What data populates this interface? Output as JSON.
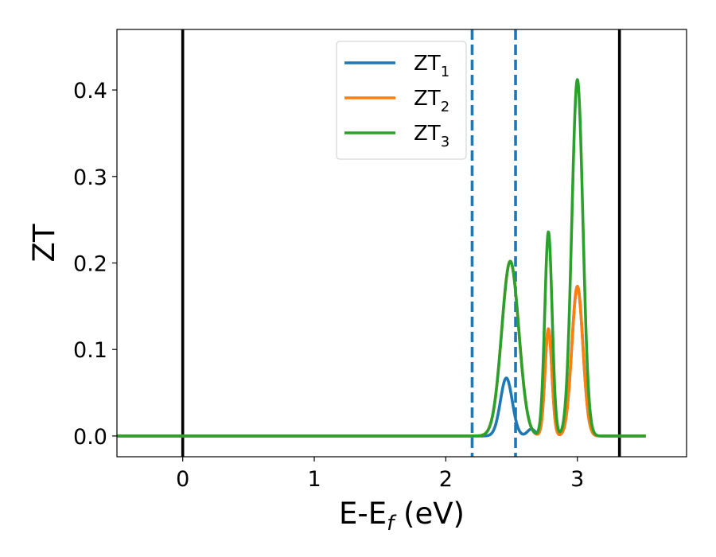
{
  "chart_data": {
    "type": "line",
    "xlabel": {
      "main": "E-E",
      "sub": "f",
      "suffix": " (eV)"
    },
    "ylabel": "ZT",
    "xlim": [
      -0.5,
      3.83
    ],
    "ylim": [
      -0.024,
      0.47
    ],
    "xticks": [
      0,
      1,
      2,
      3
    ],
    "xtick_labels": [
      "0",
      "1",
      "2",
      "3"
    ],
    "yticks": [
      0.0,
      0.1,
      0.2,
      0.3,
      0.4
    ],
    "ytick_labels": [
      "0.0",
      "0.1",
      "0.2",
      "0.3",
      "0.4"
    ],
    "grid": false,
    "legend_position": "upper-center",
    "vlines_solid": [
      0.0,
      3.32
    ],
    "vlines_dashed": [
      2.2,
      2.53
    ],
    "x_range": [
      -0.5,
      3.52
    ],
    "series": [
      {
        "name": "ZT",
        "subscript": "1",
        "color": "#1f77b4",
        "peaks": [
          {
            "center": 2.46,
            "height": 0.067,
            "width": 0.045
          },
          {
            "center": 2.65,
            "height": 0.008,
            "width": 0.03
          },
          {
            "center": 2.78,
            "height": 0.124,
            "width": 0.026
          },
          {
            "center": 3.0,
            "height": 0.173,
            "width": 0.042
          }
        ]
      },
      {
        "name": "ZT",
        "subscript": "2",
        "color": "#ff7f0e",
        "peaks": [
          {
            "center": 2.49,
            "height": 0.202,
            "width": 0.065
          },
          {
            "center": 2.78,
            "height": 0.124,
            "width": 0.026
          },
          {
            "center": 3.0,
            "height": 0.173,
            "width": 0.042
          }
        ]
      },
      {
        "name": "ZT",
        "subscript": "3",
        "color": "#2ca02c",
        "peaks": [
          {
            "center": 2.49,
            "height": 0.202,
            "width": 0.065
          },
          {
            "center": 2.78,
            "height": 0.236,
            "width": 0.028
          },
          {
            "center": 3.0,
            "height": 0.412,
            "width": 0.042
          }
        ]
      }
    ]
  }
}
